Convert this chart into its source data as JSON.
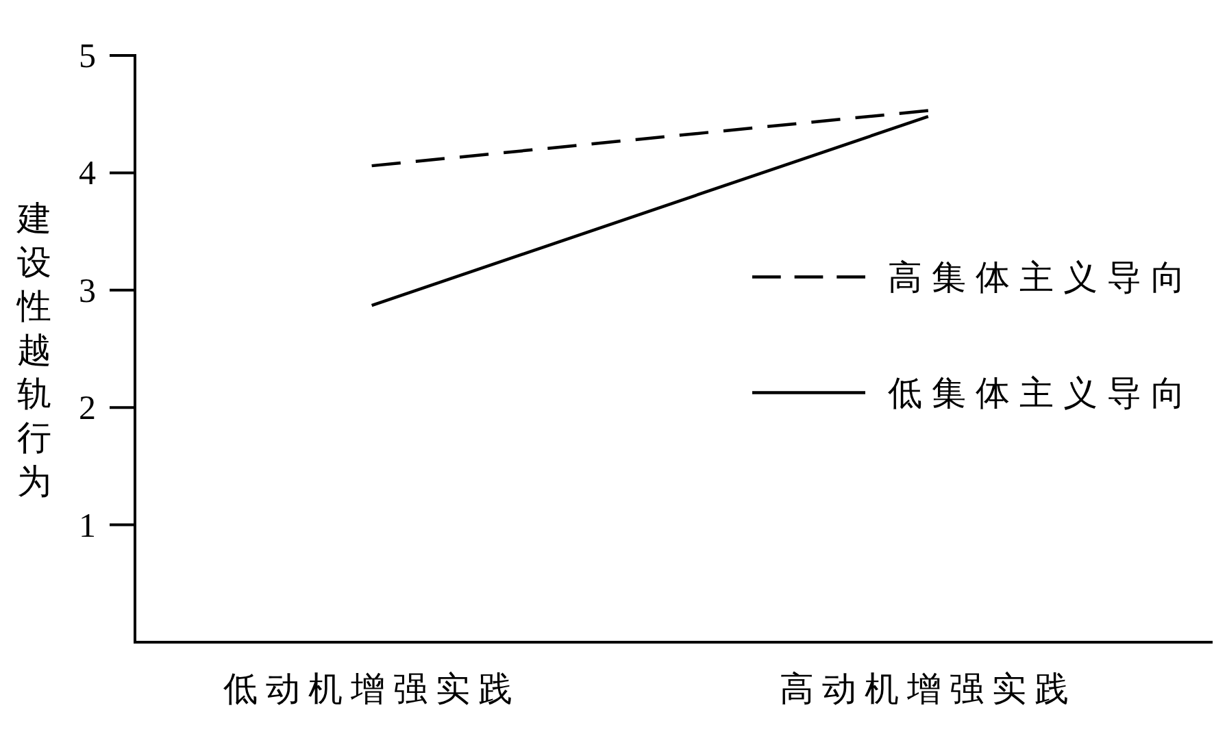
{
  "chart_data": {
    "type": "line",
    "categories": [
      "低动机增强实践",
      "高动机增强实践"
    ],
    "ylabel": "建设性越轨行为",
    "ylim": [
      0,
      5
    ],
    "yticks": [
      1,
      2,
      3,
      4,
      5
    ],
    "series": [
      {
        "name": "高集体主义导向",
        "color": "#000000",
        "line_style": "dashed",
        "values": [
          4.06,
          4.53
        ]
      },
      {
        "name": "低集体主义导向",
        "color": "#000000",
        "line_style": "solid",
        "values": [
          2.87,
          4.48
        ]
      }
    ],
    "legend": "right"
  }
}
